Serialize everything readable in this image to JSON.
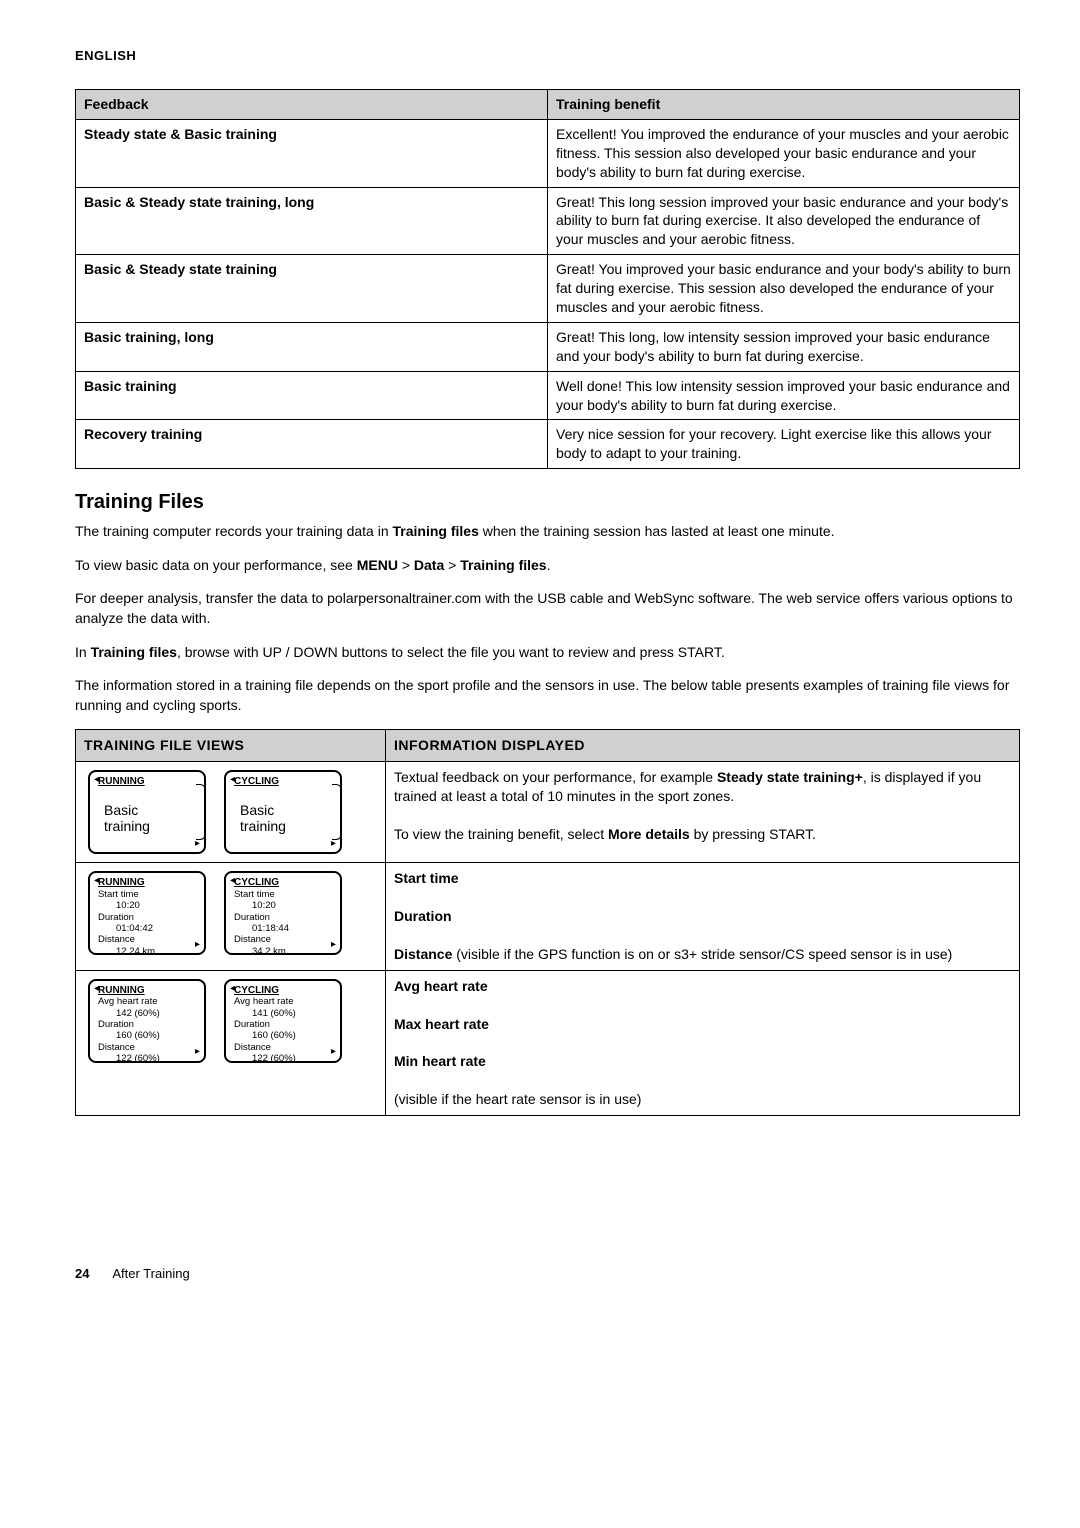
{
  "header": {
    "lang": "ENGLISH"
  },
  "feedback_table": {
    "header_left": "Feedback",
    "header_right": "Training benefit",
    "rows": [
      {
        "label": "Steady state & Basic training",
        "text": "Excellent! You improved the endurance of your muscles and your aerobic fitness. This session also developed your basic endurance and your body's ability to burn fat during exercise."
      },
      {
        "label": "Basic & Steady state training, long",
        "text": "Great! This long session improved your basic endurance and your body's ability to burn fat during exercise. It also developed the endurance of your muscles and your aerobic fitness."
      },
      {
        "label": "Basic & Steady state training",
        "text": "Great! You improved your basic endurance and your body's ability to burn fat during exercise. This session also developed the endurance of your muscles and your aerobic fitness."
      },
      {
        "label": "Basic training, long",
        "text": "Great! This long, low intensity session improved your basic endurance and your body's ability to burn fat during exercise."
      },
      {
        "label": "Basic training",
        "text": "Well done! This low intensity session improved your basic endurance and your body's ability to burn fat during exercise."
      },
      {
        "label": "Recovery training",
        "text": "Very nice session for your recovery. Light exercise like this allows your body to adapt to your training."
      }
    ]
  },
  "section_title": "Training Files",
  "para1_a": "The training computer records your training data in ",
  "para1_b": "Training files",
  "para1_c": " when the training session has lasted at least one minute.",
  "para2_a": "To view basic data on your performance, see ",
  "para2_menu": "MENU",
  "para2_gt1": " > ",
  "para2_data": "Data",
  "para2_gt2": " > ",
  "para2_tf": "Training files",
  "para2_end": ".",
  "para3": "For deeper analysis, transfer the data to polarpersonaltrainer.com with the USB cable and WebSync software. The web service offers various options to analyze the data with.",
  "para4_a": "In ",
  "para4_b": "Training files",
  "para4_c": ", browse with UP / DOWN buttons to select the file you want to review and press START.",
  "para5": "The information stored in a training file depends on the sport profile and the sensors in use. The below table presents examples of training file views for running and cycling sports.",
  "views_table": {
    "header_left": "TRAINING FILE VIEWS",
    "header_right": "INFORMATION DISPLAYED",
    "row1": {
      "text_a": "Textual feedback on your performance, for example ",
      "text_b": "Steady state training+",
      "text_c": ", is displayed if you trained at least a total of 10 minutes in the sport zones.",
      "text_d": "To view the training benefit, select ",
      "text_e": "More details",
      "text_f": " by pressing START.",
      "watch_a": {
        "sport": "RUNNING",
        "l1": "Basic",
        "l2": "training"
      },
      "watch_b": {
        "sport": "CYCLING",
        "l1": "Basic",
        "l2": "training"
      }
    },
    "row2": {
      "h1": "Start time",
      "h2": "Duration",
      "h3": "Distance",
      "text": " (visible if the GPS function is on or s3+ stride sensor/CS speed sensor is in use)",
      "watch_a": {
        "sport": "RUNNING",
        "a": "Start time",
        "av": "10:20",
        "b": "Duration",
        "bv": "01:04:42",
        "c": "Distance",
        "cv": "12.24 km"
      },
      "watch_b": {
        "sport": "CYCLING",
        "a": "Start time",
        "av": "10:20",
        "b": "Duration",
        "bv": "01:18:44",
        "c": "Distance",
        "cv": "34.2 km"
      }
    },
    "row3": {
      "h1": "Avg heart rate",
      "h2": "Max heart rate",
      "h3": "Min heart rate",
      "text": "(visible if the heart rate sensor is in use)",
      "watch_a": {
        "sport": "RUNNING",
        "a": "Avg heart rate",
        "av": "142 (60%)",
        "b": "Duration",
        "bv": "160 (60%)",
        "c": "Distance",
        "cv": "122 (60%)"
      },
      "watch_b": {
        "sport": "CYCLING",
        "a": "Avg heart rate",
        "av": "141 (60%)",
        "b": "Duration",
        "bv": "160 (60%)",
        "c": "Distance",
        "cv": "122 (60%)"
      }
    }
  },
  "footer": {
    "page": "24",
    "title": "After Training"
  }
}
